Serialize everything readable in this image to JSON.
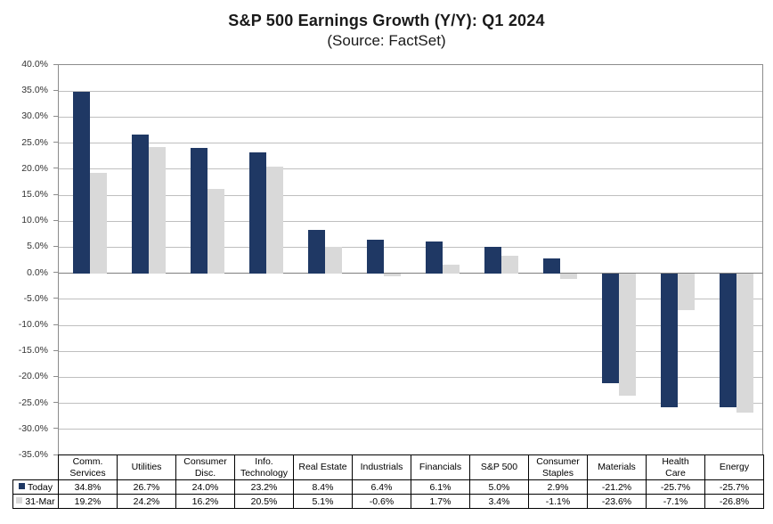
{
  "chart_data": {
    "type": "bar",
    "title": "S&P 500 Earnings Growth (Y/Y): Q1 2024",
    "subtitle": "(Source: FactSet)",
    "categories": [
      "Comm.\nServices",
      "Utilities",
      "Consumer\nDisc.",
      "Info.\nTechnology",
      "Real Estate",
      "Industrials",
      "Financials",
      "S&P 500",
      "Consumer\nStaples",
      "Materials",
      "Health\nCare",
      "Energy"
    ],
    "series": [
      {
        "name": "Today",
        "color": "#1F3864",
        "values": [
          34.8,
          26.7,
          24.0,
          23.2,
          8.4,
          6.4,
          6.1,
          5.0,
          2.9,
          -21.2,
          -25.7,
          -25.7
        ]
      },
      {
        "name": "31-Mar",
        "color": "#D9D9D9",
        "values": [
          19.2,
          24.2,
          16.2,
          20.5,
          5.1,
          -0.6,
          1.7,
          3.4,
          -1.1,
          -23.6,
          -7.1,
          -26.8
        ]
      }
    ],
    "ylim": [
      -35,
      40
    ],
    "ytick_step": 5,
    "yticks": [
      "40.0%",
      "35.0%",
      "30.0%",
      "25.0%",
      "20.0%",
      "15.0%",
      "10.0%",
      "5.0%",
      "0.0%",
      "-5.0%",
      "-10.0%",
      "-15.0%",
      "-20.0%",
      "-25.0%",
      "-30.0%",
      "-35.0%"
    ],
    "grid": true,
    "legend_position": "data-table-left",
    "value_format": "0.0%"
  },
  "colors": {
    "grid": "#BFBFBF",
    "zero_line": "#7F7F7F",
    "plot_border": "#8C8C8C",
    "table_border": "#000000"
  }
}
